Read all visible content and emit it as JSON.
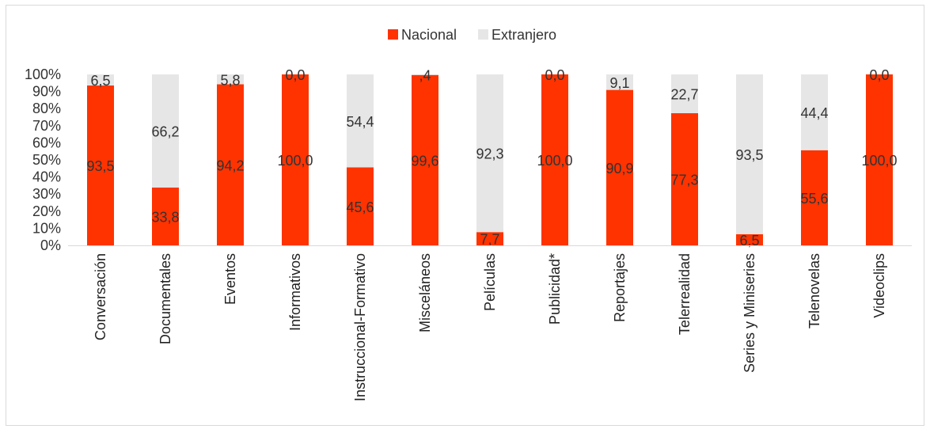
{
  "chart_data": {
    "type": "bar",
    "stacked": true,
    "normalized": true,
    "categories": [
      "Conversación",
      "Documentales",
      "Eventos",
      "Informativos",
      "Instruccional-Formativo",
      "Misceláneos",
      "Películas",
      "Publicidad*",
      "Reportajes",
      "Telerrealidad",
      "Series y Miniseries",
      "Telenovelas",
      "Videoclips"
    ],
    "series": [
      {
        "name": "Nacional",
        "color": "#ff3300",
        "values": [
          93.5,
          33.8,
          94.2,
          100.0,
          45.6,
          99.6,
          7.7,
          100.0,
          90.9,
          77.3,
          6.5,
          55.6,
          100.0
        ],
        "labels": [
          "93,5",
          "33,8",
          "94,2",
          "100,0",
          "45,6",
          "99,6",
          "7,7",
          "100,0",
          "90,9",
          "77,3",
          "6,5",
          "55,6",
          "100,0"
        ]
      },
      {
        "name": "Extranjero",
        "color": "#e6e6e6",
        "values": [
          6.5,
          66.2,
          5.8,
          0.0,
          54.4,
          0.4,
          92.3,
          0.0,
          9.1,
          22.7,
          93.5,
          44.4,
          0.0
        ],
        "labels": [
          "6,5",
          "66,2",
          "5,8",
          "0,0",
          "54,4",
          ",4",
          "92,3",
          "0,0",
          "9,1",
          "22,7",
          "93,5",
          "44,4",
          "0,0"
        ]
      }
    ],
    "yticks": [
      "0%",
      "10%",
      "20%",
      "30%",
      "40%",
      "50%",
      "60%",
      "70%",
      "80%",
      "90%",
      "100%"
    ],
    "ylim": [
      0,
      100
    ],
    "legend_position": "top",
    "grid": false
  }
}
